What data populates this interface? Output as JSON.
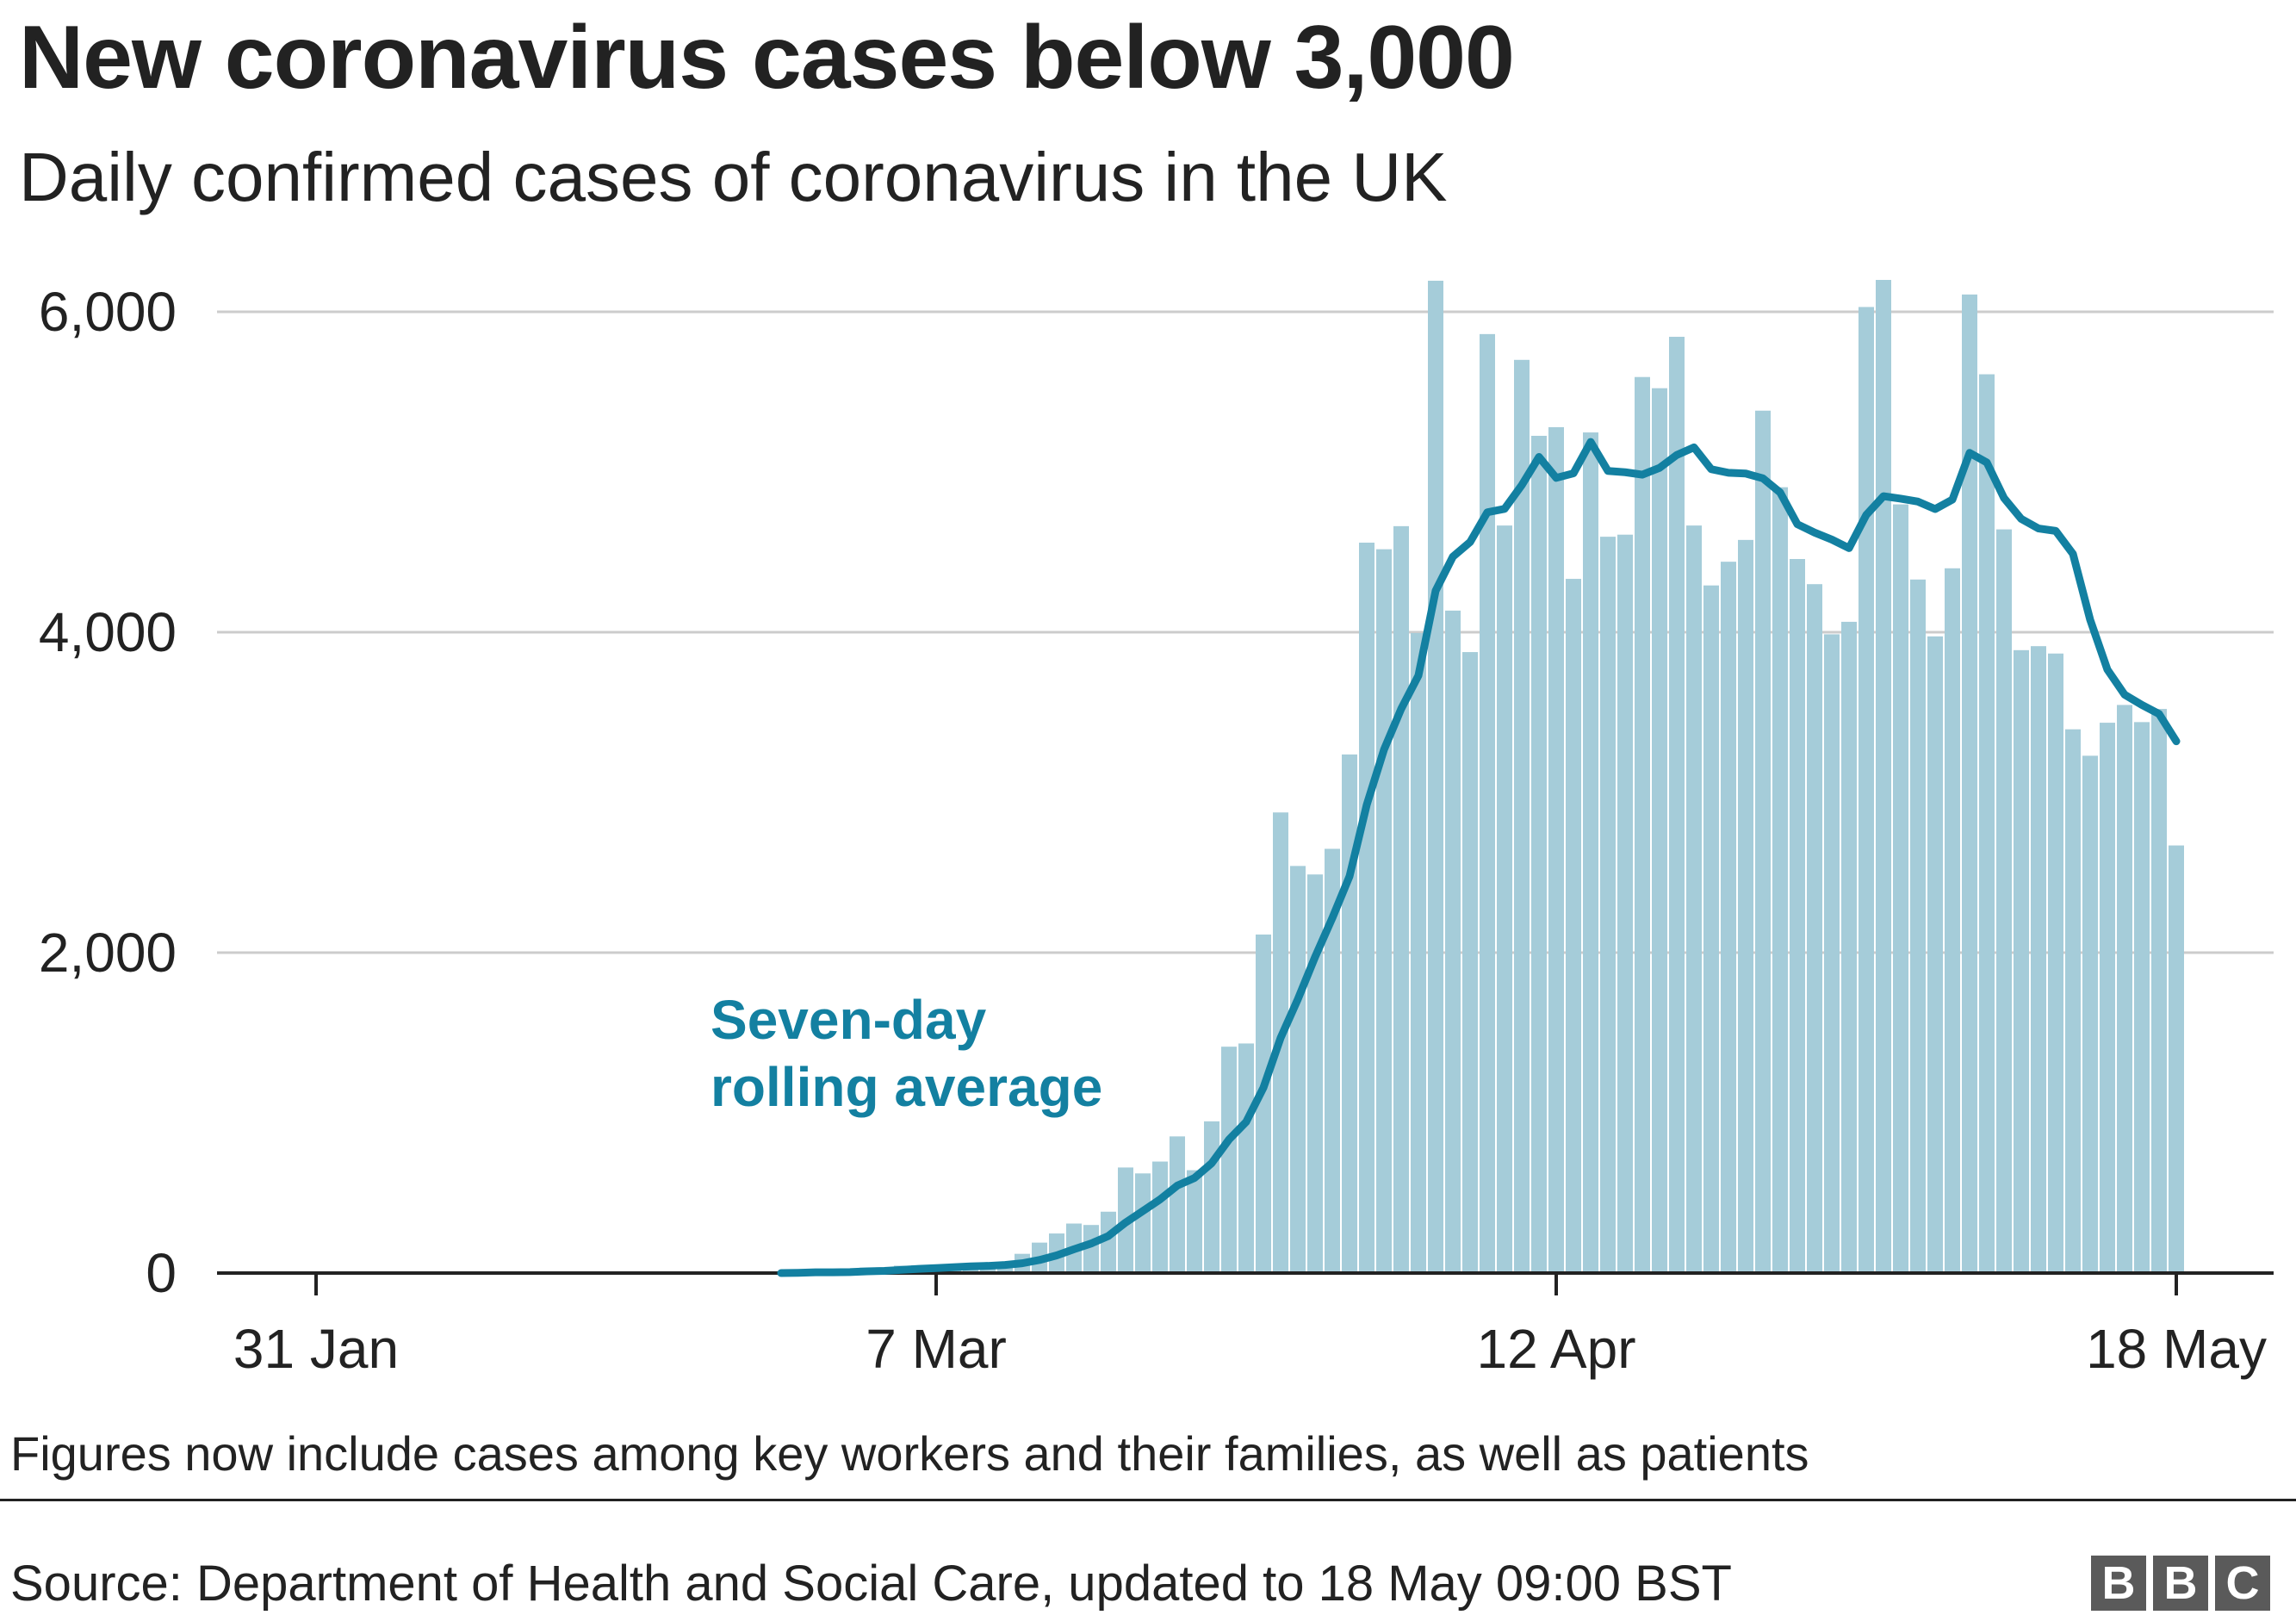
{
  "title": "New coronavirus cases below 3,000",
  "subtitle": "Daily confirmed cases of coronavirus in the UK",
  "footnote": "Figures now include cases among key workers and their families, as well as patients",
  "source": "Source: Department of Health and Social Care, updated to 18 May 09:00 BST",
  "logo": [
    "B",
    "B",
    "C"
  ],
  "colors": {
    "bar": "#a5ccd9",
    "line": "#1380a1",
    "grid": "#cccccc",
    "axis": "#222222",
    "text": "#222222"
  },
  "chart_data": {
    "type": "bar",
    "title": "New coronavirus cases below 3,000",
    "subtitle": "Daily confirmed cases of coronavirus in the UK",
    "xlabel": "",
    "ylabel": "",
    "ylim": [
      0,
      6000
    ],
    "yticks": [
      0,
      2000,
      4000,
      6000
    ],
    "ytick_labels": [
      "0",
      "2,000",
      "4,000",
      "6,000"
    ],
    "x_range_days_from_31_jan": [
      0,
      108
    ],
    "xticks": [
      {
        "label": "31 Jan",
        "day": 0
      },
      {
        "label": "7 Mar",
        "day": 36
      },
      {
        "label": "12 Apr",
        "day": 72
      },
      {
        "label": "18 May",
        "day": 108
      }
    ],
    "grid": true,
    "series_start_day": 27,
    "series_start_label": "27 Feb",
    "series": [
      {
        "name": "Daily confirmed cases",
        "type": "bar",
        "values": [
          0,
          3,
          12,
          4,
          11,
          34,
          29,
          46,
          48,
          45,
          40,
          50,
          55,
          70,
          120,
          190,
          247,
          309,
          300,
          383,
          659,
          622,
          696,
          853,
          642,
          947,
          1413,
          1433,
          2113,
          2875,
          2541,
          2488,
          2648,
          3237,
          4559,
          4518,
          4662,
          3995,
          6194,
          4135,
          3876,
          5861,
          4666,
          5700,
          5226,
          5280,
          4333,
          5247,
          4596,
          4609,
          5593,
          5523,
          5844,
          4666,
          4292,
          4440,
          4576,
          5383,
          4905,
          4457,
          4300,
          3987,
          4065,
          6030,
          6199,
          4798,
          4329,
          3974,
          4399,
          6108,
          5610,
          4642,
          3888,
          3913,
          3867,
          3394,
          3229,
          3435,
          3546,
          3439,
          3521,
          2669
        ]
      },
      {
        "name": "Seven-day rolling average",
        "type": "line",
        "window": 7,
        "derived_from": "Daily confirmed cases"
      }
    ],
    "annotation": {
      "lines": [
        "Seven-day",
        "rolling average"
      ],
      "target": "Seven-day rolling average"
    }
  }
}
